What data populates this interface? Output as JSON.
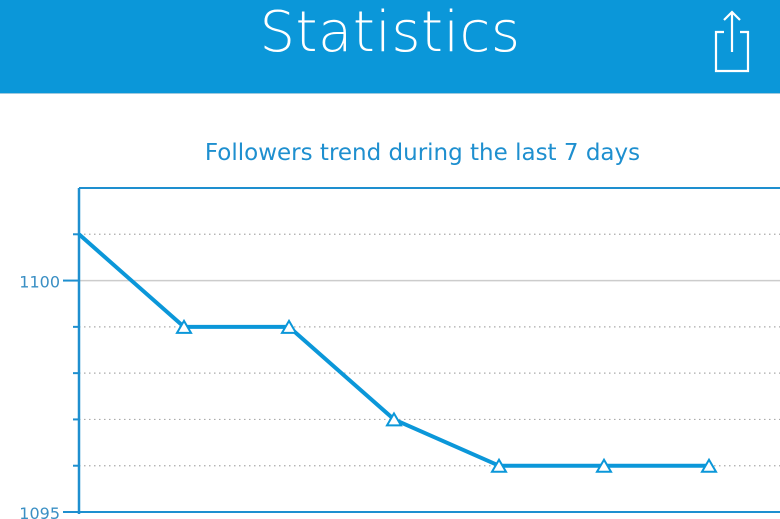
{
  "header": {
    "title": "Statistics",
    "share_icon": "share-icon",
    "background": "#0b97d9"
  },
  "chart_data": {
    "type": "line",
    "title": "Followers trend during the last 7 days",
    "x": [
      1,
      2,
      3,
      4,
      5,
      6,
      7
    ],
    "series": [
      {
        "values": [
          1101,
          1099,
          1099,
          1097,
          1096,
          1096,
          1096
        ],
        "color": "#0b97d9"
      }
    ],
    "ylim": [
      1095,
      1102
    ],
    "yticks": [
      {
        "value": 1100,
        "label": "1100"
      },
      {
        "value": 1095,
        "label": "1095"
      }
    ],
    "minor_gridlines": [
      1101,
      1099,
      1098,
      1097,
      1096
    ],
    "grid": true,
    "xlabel": "",
    "ylabel": ""
  }
}
